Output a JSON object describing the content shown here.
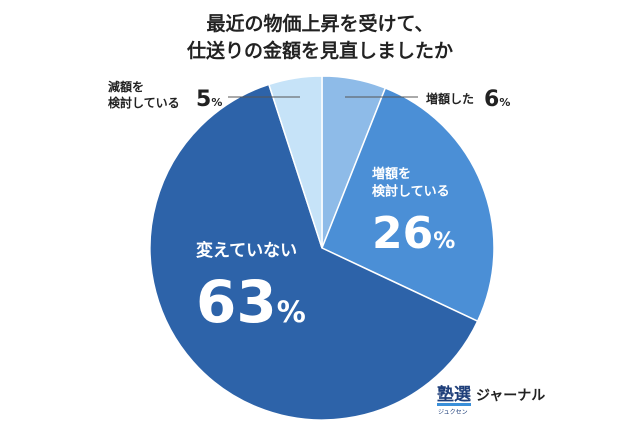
{
  "chart_data": {
    "type": "pie",
    "title": [
      "最近の物価上昇を受けて、",
      "仕送りの金額を見直しましたか"
    ],
    "categories": [
      "増額した",
      "増額を\n検討している",
      "変えていない",
      "減額を\n検討している"
    ],
    "values": [
      6,
      26,
      63,
      5
    ],
    "value_labels": [
      "6%",
      "26%",
      "63%",
      "5%"
    ],
    "colors": [
      "#8ebbe8",
      "#4b8fd6",
      "#2d63a9",
      "#c6e3f8"
    ]
  },
  "logo": {
    "main": "塾選",
    "reading": "ジュクセン",
    "suffix": "ジャーナル"
  }
}
